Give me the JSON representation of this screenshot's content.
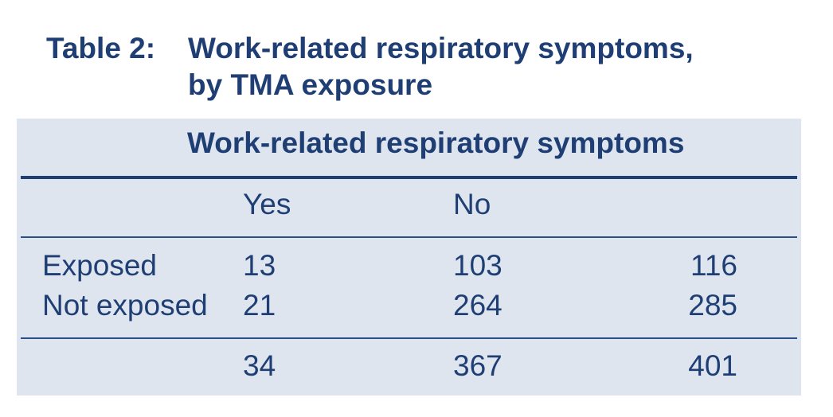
{
  "caption": {
    "label": "Table 2:",
    "title_line1": "Work-related respiratory symptoms,",
    "title_line2": "by TMA exposure"
  },
  "table": {
    "group_header": "Work-related respiratory symptoms",
    "columns": [
      "Yes",
      "No",
      ""
    ],
    "rows": [
      {
        "label": "Exposed",
        "yes": "13",
        "no": "103",
        "total": "116"
      },
      {
        "label": "Not exposed",
        "yes": "21",
        "no": "264",
        "total": "285"
      }
    ],
    "totals": {
      "label": "",
      "yes": "34",
      "no": "367",
      "total": "401"
    }
  },
  "colors": {
    "text": "#1f3f74",
    "panel_background": "#dfe5ef",
    "rule": "#1f3f74"
  }
}
